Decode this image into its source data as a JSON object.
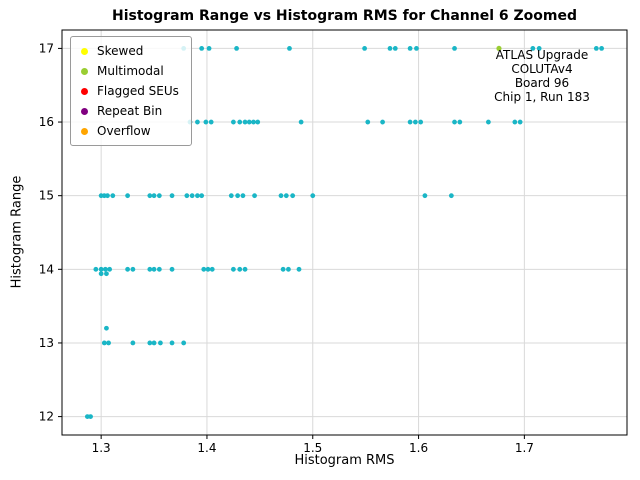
{
  "chart_data": {
    "type": "scatter",
    "title": "Histogram Range vs Histogram RMS for Channel 6 Zoomed",
    "xlabel": "Histogram RMS",
    "ylabel": "Histogram Range",
    "xlim": [
      1.263,
      1.797
    ],
    "ylim": [
      11.75,
      17.25
    ],
    "xticks": [
      1.3,
      1.4,
      1.5,
      1.6,
      1.7
    ],
    "yticks": [
      12,
      13,
      14,
      15,
      16,
      17
    ],
    "grid": true,
    "grid_color": "#d9d9d9",
    "legend": {
      "position": "upper-left",
      "entries": [
        {
          "label": "Skewed",
          "color": "#ffff00"
        },
        {
          "label": "Multimodal",
          "color": "#9acd32"
        },
        {
          "label": "Flagged SEUs",
          "color": "#ff0000"
        },
        {
          "label": "Repeat Bin",
          "color": "#800080"
        },
        {
          "label": "Overflow",
          "color": "#ffa500"
        }
      ]
    },
    "annotation": {
      "lines": [
        "ATLAS Upgrade",
        "COLUTAv4",
        "Board 96",
        "Chip 1, Run 183"
      ],
      "align": "center"
    },
    "series": [
      {
        "name": "channel-points",
        "color": "#1ab6c6",
        "marker_radius": 2.4,
        "points": [
          [
            1.378,
            17
          ],
          [
            1.395,
            17
          ],
          [
            1.402,
            17
          ],
          [
            1.428,
            17
          ],
          [
            1.478,
            17
          ],
          [
            1.549,
            17
          ],
          [
            1.573,
            17
          ],
          [
            1.578,
            17
          ],
          [
            1.592,
            17
          ],
          [
            1.598,
            17
          ],
          [
            1.634,
            17
          ],
          [
            1.708,
            17
          ],
          [
            1.714,
            17
          ],
          [
            1.768,
            17
          ],
          [
            1.773,
            17
          ],
          [
            1.384,
            16
          ],
          [
            1.391,
            16
          ],
          [
            1.399,
            16
          ],
          [
            1.404,
            16
          ],
          [
            1.425,
            16
          ],
          [
            1.431,
            16
          ],
          [
            1.436,
            16
          ],
          [
            1.44,
            16
          ],
          [
            1.444,
            16
          ],
          [
            1.448,
            16
          ],
          [
            1.489,
            16
          ],
          [
            1.552,
            16
          ],
          [
            1.566,
            16
          ],
          [
            1.592,
            16
          ],
          [
            1.597,
            16
          ],
          [
            1.602,
            16
          ],
          [
            1.634,
            16
          ],
          [
            1.639,
            16
          ],
          [
            1.666,
            16
          ],
          [
            1.691,
            16
          ],
          [
            1.696,
            16
          ],
          [
            1.3,
            15
          ],
          [
            1.303,
            15
          ],
          [
            1.306,
            15
          ],
          [
            1.311,
            15
          ],
          [
            1.325,
            15
          ],
          [
            1.346,
            15
          ],
          [
            1.35,
            15
          ],
          [
            1.355,
            15
          ],
          [
            1.367,
            15
          ],
          [
            1.381,
            15
          ],
          [
            1.386,
            15
          ],
          [
            1.391,
            15
          ],
          [
            1.395,
            15
          ],
          [
            1.423,
            15
          ],
          [
            1.429,
            15
          ],
          [
            1.434,
            15
          ],
          [
            1.445,
            15
          ],
          [
            1.47,
            15
          ],
          [
            1.475,
            15
          ],
          [
            1.481,
            15
          ],
          [
            1.5,
            15
          ],
          [
            1.606,
            15
          ],
          [
            1.631,
            15
          ],
          [
            1.295,
            14
          ],
          [
            1.3,
            14
          ],
          [
            1.304,
            14
          ],
          [
            1.308,
            14
          ],
          [
            1.325,
            14
          ],
          [
            1.33,
            14
          ],
          [
            1.346,
            14
          ],
          [
            1.35,
            14
          ],
          [
            1.355,
            14
          ],
          [
            1.367,
            14
          ],
          [
            1.397,
            14
          ],
          [
            1.401,
            14
          ],
          [
            1.405,
            14
          ],
          [
            1.425,
            14
          ],
          [
            1.431,
            14
          ],
          [
            1.436,
            14
          ],
          [
            1.472,
            14
          ],
          [
            1.477,
            14
          ],
          [
            1.487,
            14
          ],
          [
            1.3,
            13.94
          ],
          [
            1.305,
            13.94
          ],
          [
            1.305,
            13.2
          ],
          [
            1.303,
            13
          ],
          [
            1.307,
            13
          ],
          [
            1.33,
            13
          ],
          [
            1.346,
            13
          ],
          [
            1.35,
            13
          ],
          [
            1.356,
            13
          ],
          [
            1.367,
            13
          ],
          [
            1.378,
            13
          ],
          [
            1.287,
            12
          ],
          [
            1.29,
            12
          ]
        ]
      },
      {
        "name": "multimodal-points",
        "color": "#9acd32",
        "marker_radius": 2.6,
        "points": [
          [
            1.676,
            17
          ]
        ]
      }
    ]
  }
}
